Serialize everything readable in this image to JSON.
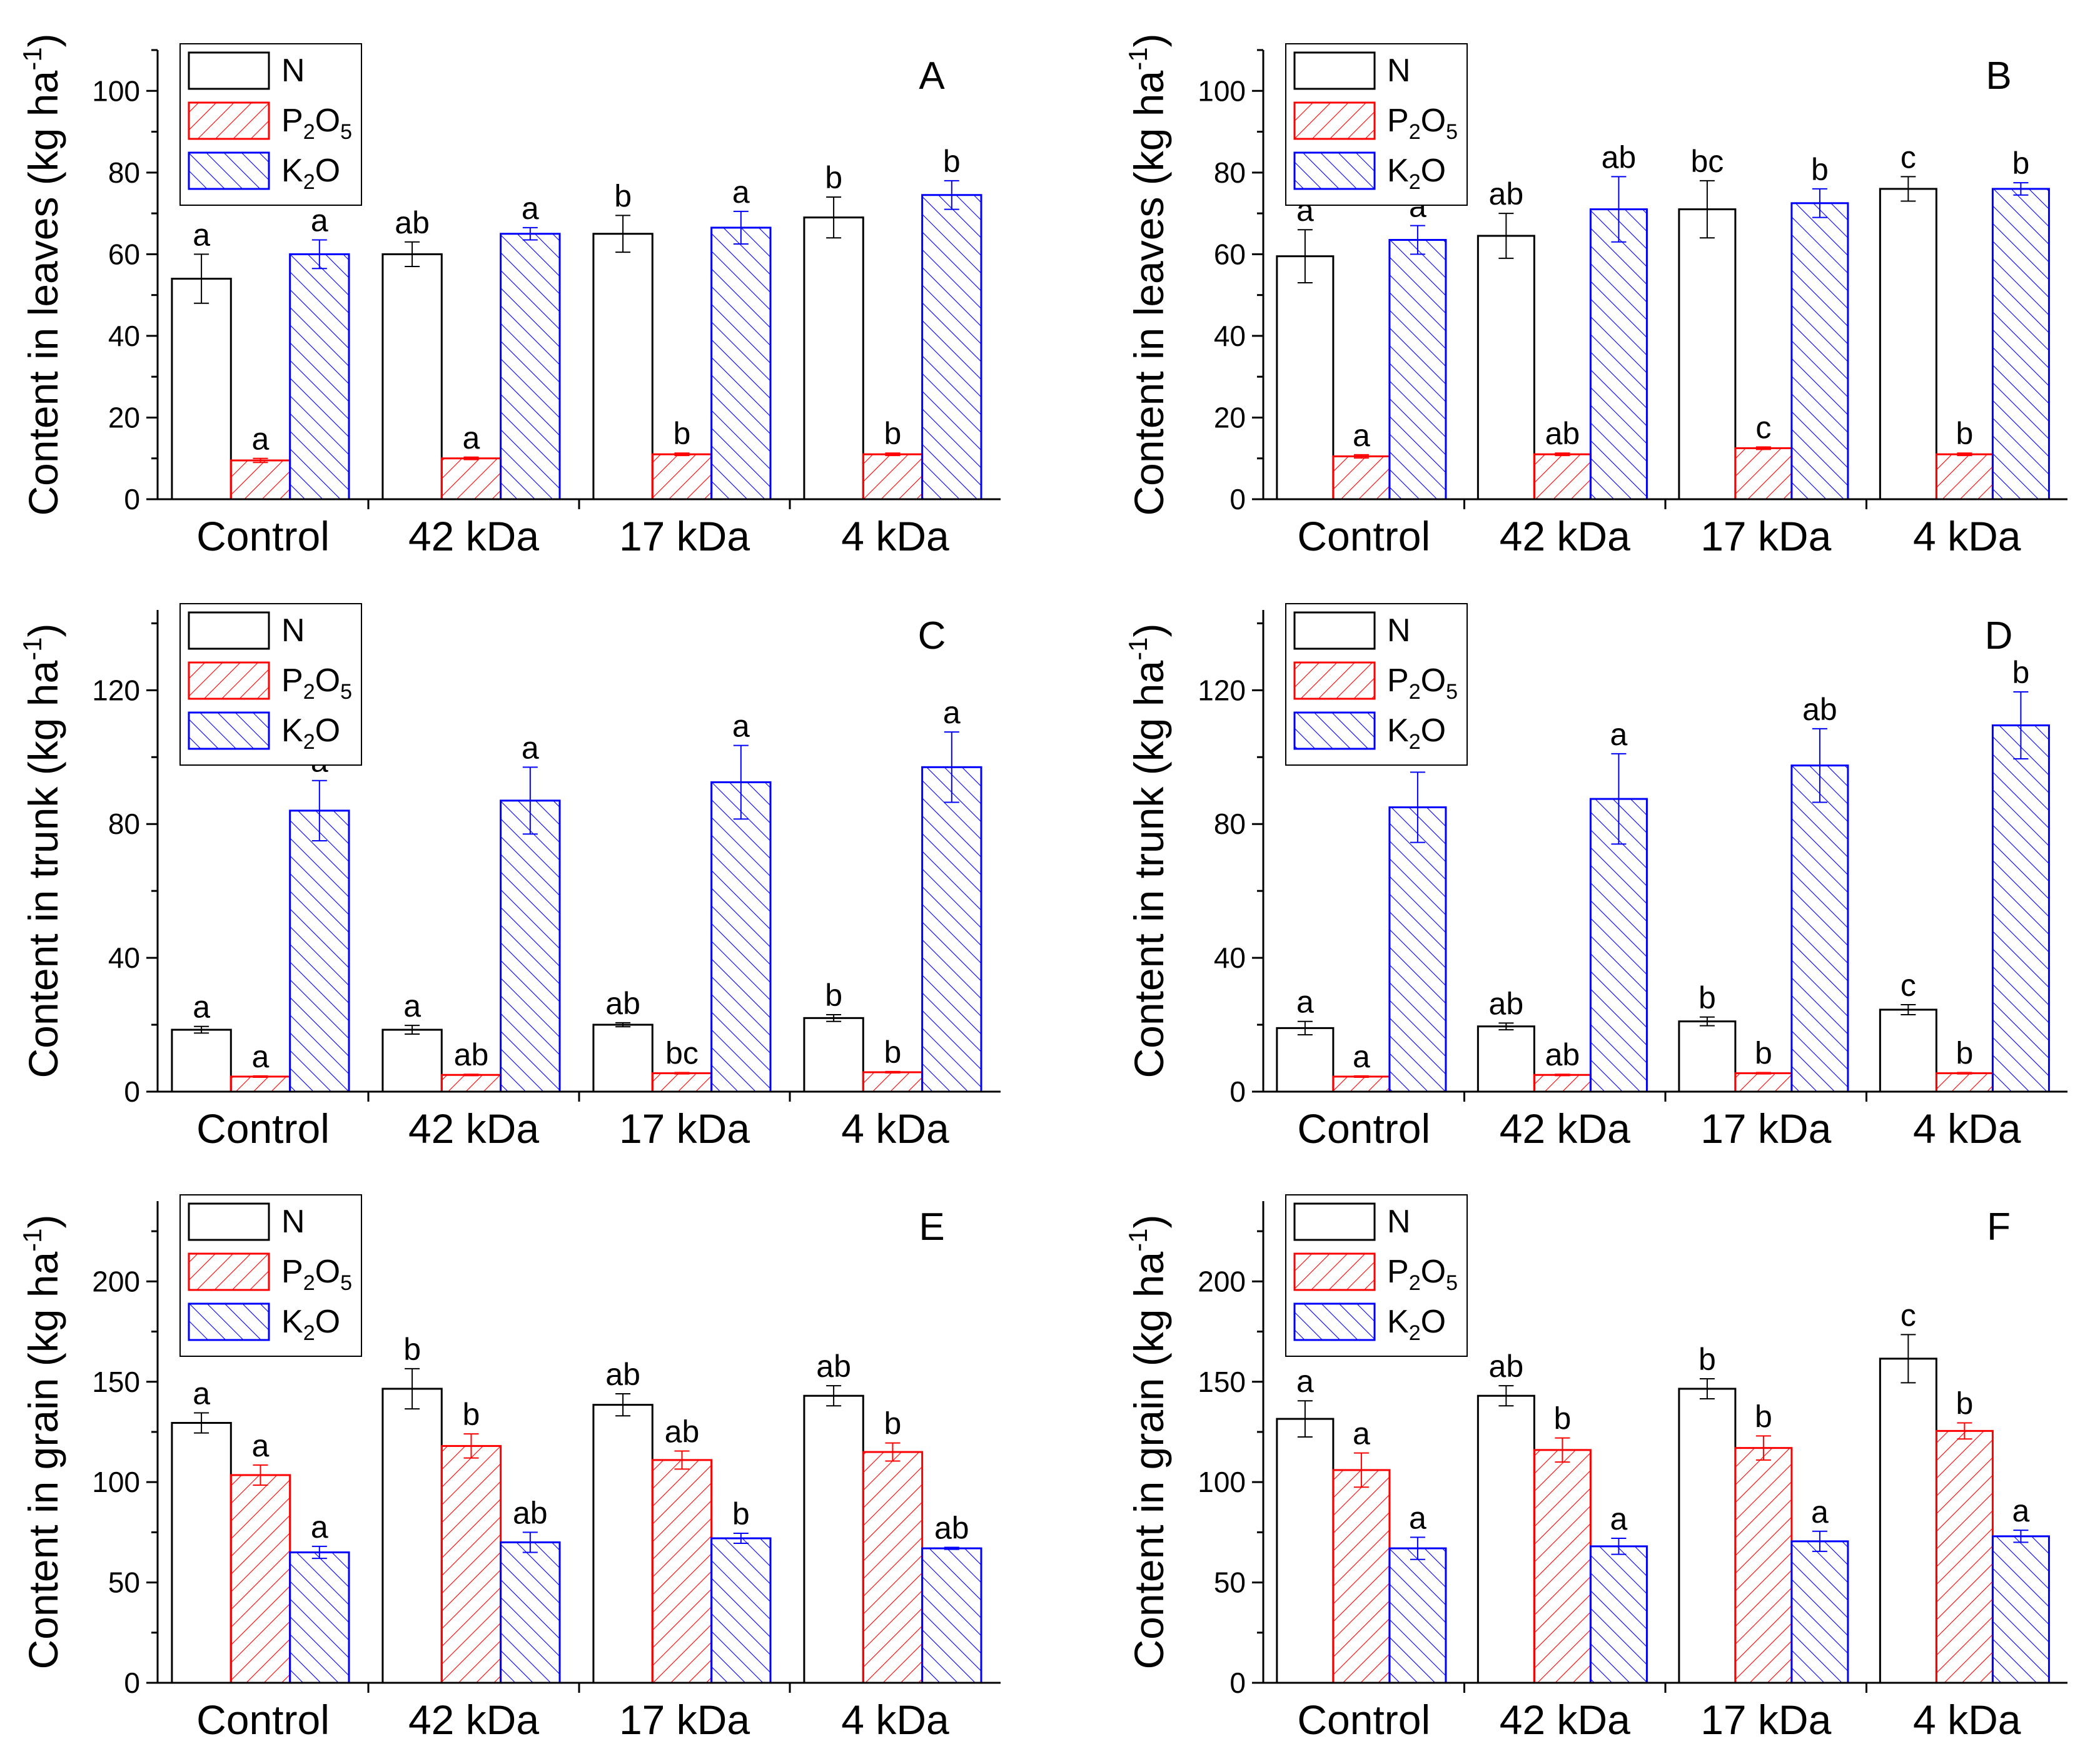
{
  "colors": {
    "N": "#000000",
    "P2O5": "#ff0000",
    "K2O": "#0000ff",
    "axis": "#000000"
  },
  "legend": {
    "items": [
      {
        "key": "N",
        "label": "N",
        "parts": [
          [
            "N",
            ""
          ]
        ],
        "pattern": "none"
      },
      {
        "key": "P2O5",
        "label": "P2O5",
        "parts": [
          [
            "P",
            ""
          ],
          [
            "2",
            "sub"
          ],
          [
            "O",
            ""
          ],
          [
            "5",
            "sub"
          ]
        ],
        "pattern": "hatch-right"
      },
      {
        "key": "K2O",
        "label": "K2O",
        "parts": [
          [
            "K",
            ""
          ],
          [
            "2",
            "sub"
          ],
          [
            "O",
            ""
          ]
        ],
        "pattern": "hatch-left"
      }
    ]
  },
  "chart_data": [
    {
      "type": "bar",
      "panel": "A",
      "ylabel": "Content in leaves (kg ha-1)",
      "ylabel_base": "Content in leaves (kg ha",
      "categories": [
        "Control",
        "42 kDa",
        "17 kDa",
        "4 kDa"
      ],
      "ylim": [
        0,
        110
      ],
      "yticks": [
        0,
        20,
        40,
        60,
        80,
        100
      ],
      "minor_step": 10,
      "series": [
        {
          "name": "N",
          "values": [
            54,
            60,
            65,
            69
          ],
          "errors": [
            6,
            3,
            4.5,
            5
          ],
          "letters": [
            "a",
            "ab",
            "b",
            "b"
          ]
        },
        {
          "name": "P2O5",
          "values": [
            9.5,
            10,
            11,
            11
          ],
          "errors": [
            0.5,
            0.3,
            0.3,
            0.3
          ],
          "letters": [
            "a",
            "a",
            "b",
            "b"
          ]
        },
        {
          "name": "K2O",
          "values": [
            60,
            65,
            66.5,
            74.5
          ],
          "errors": [
            3.5,
            1.5,
            4,
            3.5
          ],
          "letters": [
            "a",
            "a",
            "a",
            "b"
          ]
        }
      ]
    },
    {
      "type": "bar",
      "panel": "B",
      "ylabel": "Content in leaves (kg ha-1)",
      "ylabel_base": "Content in leaves (kg ha",
      "categories": [
        "Control",
        "42 kDa",
        "17 kDa",
        "4 kDa"
      ],
      "ylim": [
        0,
        110
      ],
      "yticks": [
        0,
        20,
        40,
        60,
        80,
        100
      ],
      "minor_step": 10,
      "series": [
        {
          "name": "N",
          "values": [
            59.5,
            64.5,
            71,
            76
          ],
          "errors": [
            6.5,
            5.5,
            7,
            3
          ],
          "letters": [
            "a",
            "ab",
            "bc",
            "c"
          ]
        },
        {
          "name": "P2O5",
          "values": [
            10.5,
            11,
            12.5,
            11
          ],
          "errors": [
            0.4,
            0.3,
            0.3,
            0.3
          ],
          "letters": [
            "a",
            "ab",
            "c",
            "b"
          ]
        },
        {
          "name": "K2O",
          "values": [
            63.5,
            71,
            72.5,
            76
          ],
          "errors": [
            3.5,
            8,
            3.5,
            1.5
          ],
          "letters": [
            "a",
            "ab",
            "b",
            "b"
          ]
        }
      ]
    },
    {
      "type": "bar",
      "panel": "C",
      "ylabel": "Content in trunk (kg ha-1)",
      "ylabel_base": "Content in trunk (kg ha",
      "categories": [
        "Control",
        "42 kDa",
        "17 kDa",
        "4 kDa"
      ],
      "ylim": [
        0,
        144
      ],
      "yticks": [
        0,
        40,
        80,
        120
      ],
      "minor_step": 20,
      "series": [
        {
          "name": "N",
          "values": [
            18.5,
            18.5,
            20,
            22
          ],
          "errors": [
            1,
            1.3,
            0.6,
            1
          ],
          "letters": [
            "a",
            "a",
            "ab",
            "b"
          ]
        },
        {
          "name": "P2O5",
          "values": [
            4.5,
            5,
            5.5,
            5.8
          ],
          "errors": [
            0.2,
            0.2,
            0.2,
            0.2
          ],
          "letters": [
            "a",
            "ab",
            "bc",
            "b"
          ]
        },
        {
          "name": "K2O",
          "values": [
            84,
            87,
            92.5,
            97
          ],
          "errors": [
            9,
            10,
            11,
            10.5
          ],
          "letters": [
            "a",
            "a",
            "a",
            "a"
          ]
        }
      ]
    },
    {
      "type": "bar",
      "panel": "D",
      "ylabel": "Content in trunk (kg ha-1)",
      "ylabel_base": "Content in trunk (kg ha",
      "categories": [
        "Control",
        "42 kDa",
        "17 kDa",
        "4 kDa"
      ],
      "ylim": [
        0,
        144
      ],
      "yticks": [
        0,
        40,
        80,
        120
      ],
      "minor_step": 20,
      "series": [
        {
          "name": "N",
          "values": [
            19,
            19.5,
            21,
            24.5
          ],
          "errors": [
            2,
            1,
            1.3,
            1.5
          ],
          "letters": [
            "a",
            "ab",
            "b",
            "c"
          ]
        },
        {
          "name": "P2O5",
          "values": [
            4.5,
            5,
            5.5,
            5.5
          ],
          "errors": [
            0.2,
            0.2,
            0.2,
            0.2
          ],
          "letters": [
            "a",
            "ab",
            "b",
            "b"
          ]
        },
        {
          "name": "K2O",
          "values": [
            85,
            87.5,
            97.5,
            109.5
          ],
          "errors": [
            10.5,
            13.5,
            11,
            10
          ],
          "letters": [
            "a",
            "a",
            "ab",
            "b"
          ]
        }
      ]
    },
    {
      "type": "bar",
      "panel": "E",
      "ylabel": "Content in grain (kg ha-1)",
      "ylabel_base": "Content in grain (kg ha",
      "categories": [
        "Control",
        "42 kDa",
        "17 kDa",
        "4 kDa"
      ],
      "ylim": [
        0,
        240
      ],
      "yticks": [
        0,
        50,
        100,
        150,
        200
      ],
      "minor_step": 25,
      "series": [
        {
          "name": "N",
          "values": [
            129.5,
            146.5,
            138.5,
            143
          ],
          "errors": [
            5,
            10,
            5.5,
            5
          ],
          "letters": [
            "a",
            "b",
            "ab",
            "ab"
          ]
        },
        {
          "name": "P2O5",
          "values": [
            103.5,
            118,
            111,
            115
          ],
          "errors": [
            5,
            6,
            4.5,
            4.5
          ],
          "letters": [
            "a",
            "b",
            "ab",
            "b"
          ]
        },
        {
          "name": "K2O",
          "values": [
            65,
            70,
            72,
            67
          ],
          "errors": [
            3,
            5,
            2.5,
            0.5
          ],
          "letters": [
            "a",
            "ab",
            "b",
            "ab"
          ]
        }
      ]
    },
    {
      "type": "bar",
      "panel": "F",
      "ylabel": "Content in grain (kg ha-1)",
      "ylabel_base": "Content in grain (kg ha",
      "categories": [
        "Control",
        "42 kDa",
        "17 kDa",
        "4 kDa"
      ],
      "ylim": [
        0,
        240
      ],
      "yticks": [
        0,
        50,
        100,
        150,
        200
      ],
      "minor_step": 25,
      "series": [
        {
          "name": "N",
          "values": [
            131.5,
            143,
            146.5,
            161.5
          ],
          "errors": [
            9,
            5,
            5,
            12
          ],
          "letters": [
            "a",
            "ab",
            "b",
            "c"
          ]
        },
        {
          "name": "P2O5",
          "values": [
            106,
            116,
            117,
            125.5
          ],
          "errors": [
            8.5,
            6,
            6,
            4
          ],
          "letters": [
            "a",
            "b",
            "b",
            "b"
          ]
        },
        {
          "name": "K2O",
          "values": [
            67,
            68,
            70.5,
            73
          ],
          "errors": [
            5.5,
            4,
            5,
            3
          ],
          "letters": [
            "a",
            "a",
            "a",
            "a"
          ]
        }
      ]
    }
  ],
  "exponent": "-1"
}
